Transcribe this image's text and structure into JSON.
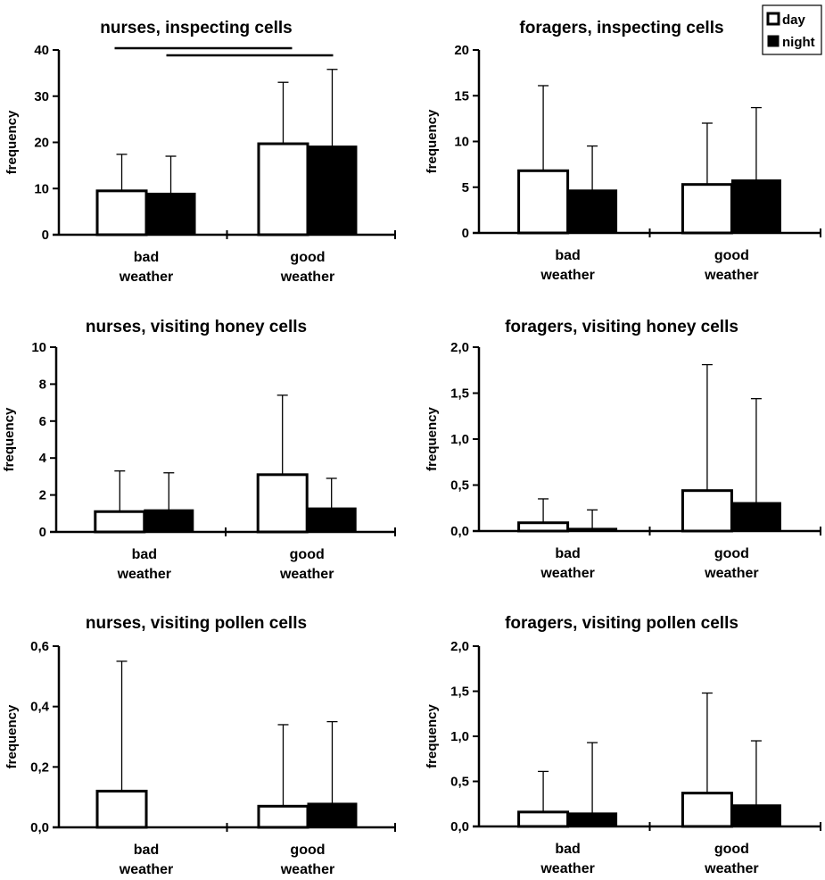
{
  "legend": {
    "items": [
      {
        "label": "day",
        "color": "#ffffff"
      },
      {
        "label": "night",
        "color": "#000000"
      }
    ]
  },
  "chart_data": [
    {
      "type": "bar",
      "title": "nurses, inspecting cells",
      "ylabel": "frequency",
      "ylim": [
        0,
        40
      ],
      "yticks": [
        "0",
        "10",
        "20",
        "30",
        "40"
      ],
      "categories": [
        "bad weather",
        "good weather"
      ],
      "series": [
        {
          "name": "day",
          "values": [
            9.5,
            19.7
          ],
          "errors": [
            17.4,
            33.0
          ]
        },
        {
          "name": "night",
          "values": [
            9.0,
            19.2
          ],
          "errors": [
            17.0,
            35.8
          ]
        }
      ],
      "significance_brackets": [
        {
          "from": "bad weather / day",
          "to": "good weather / day"
        },
        {
          "from": "bad weather / night",
          "to": "good weather / night"
        }
      ]
    },
    {
      "type": "bar",
      "title": "foragers, inspecting cells",
      "ylabel": "frequency",
      "ylim": [
        0,
        20
      ],
      "yticks": [
        "0",
        "5",
        "10",
        "15",
        "20"
      ],
      "categories": [
        "bad weather",
        "good weather"
      ],
      "series": [
        {
          "name": "day",
          "values": [
            6.8,
            5.3
          ],
          "errors": [
            16.1,
            12.0
          ]
        },
        {
          "name": "night",
          "values": [
            4.7,
            5.8
          ],
          "errors": [
            9.5,
            13.7
          ]
        }
      ]
    },
    {
      "type": "bar",
      "title": "nurses, visiting honey cells",
      "ylabel": "frequency",
      "ylim": [
        0,
        10
      ],
      "yticks": [
        "0",
        "2",
        "4",
        "6",
        "8",
        "10"
      ],
      "categories": [
        "bad weather",
        "good weather"
      ],
      "series": [
        {
          "name": "day",
          "values": [
            1.1,
            3.1
          ],
          "errors": [
            3.3,
            7.4
          ]
        },
        {
          "name": "night",
          "values": [
            1.2,
            1.3
          ],
          "errors": [
            3.2,
            2.9
          ]
        }
      ]
    },
    {
      "type": "bar",
      "title": "foragers, visiting honey cells",
      "ylabel": "frequency",
      "ylim": [
        0,
        2.0
      ],
      "yticks": [
        "0,0",
        "0,5",
        "1,0",
        "1,5",
        "2,0"
      ],
      "categories": [
        "bad weather",
        "good weather"
      ],
      "series": [
        {
          "name": "day",
          "values": [
            0.09,
            0.44
          ],
          "errors": [
            0.35,
            1.81
          ]
        },
        {
          "name": "night",
          "values": [
            0.03,
            0.31
          ],
          "errors": [
            0.23,
            1.44
          ]
        }
      ]
    },
    {
      "type": "bar",
      "title": "nurses, visiting pollen cells",
      "ylabel": "frequency",
      "ylim": [
        0,
        0.6
      ],
      "yticks": [
        "0,0",
        "0,2",
        "0,4",
        "0,6"
      ],
      "categories": [
        "bad weather",
        "good weather"
      ],
      "series": [
        {
          "name": "day",
          "values": [
            0.12,
            0.07
          ],
          "errors": [
            0.55,
            0.34
          ]
        },
        {
          "name": "night",
          "values": [
            0.0,
            0.08
          ],
          "errors": [
            0.0,
            0.35
          ]
        }
      ]
    },
    {
      "type": "bar",
      "title": "foragers, visiting pollen cells",
      "ylabel": "frequency",
      "ylim": [
        0,
        2.0
      ],
      "yticks": [
        "0,0",
        "0,5",
        "1,0",
        "1,5",
        "2,0"
      ],
      "categories": [
        "bad weather",
        "good weather"
      ],
      "series": [
        {
          "name": "day",
          "values": [
            0.16,
            0.37
          ],
          "errors": [
            0.61,
            1.48
          ]
        },
        {
          "name": "night",
          "values": [
            0.15,
            0.24
          ],
          "errors": [
            0.93,
            0.95
          ]
        }
      ]
    }
  ]
}
